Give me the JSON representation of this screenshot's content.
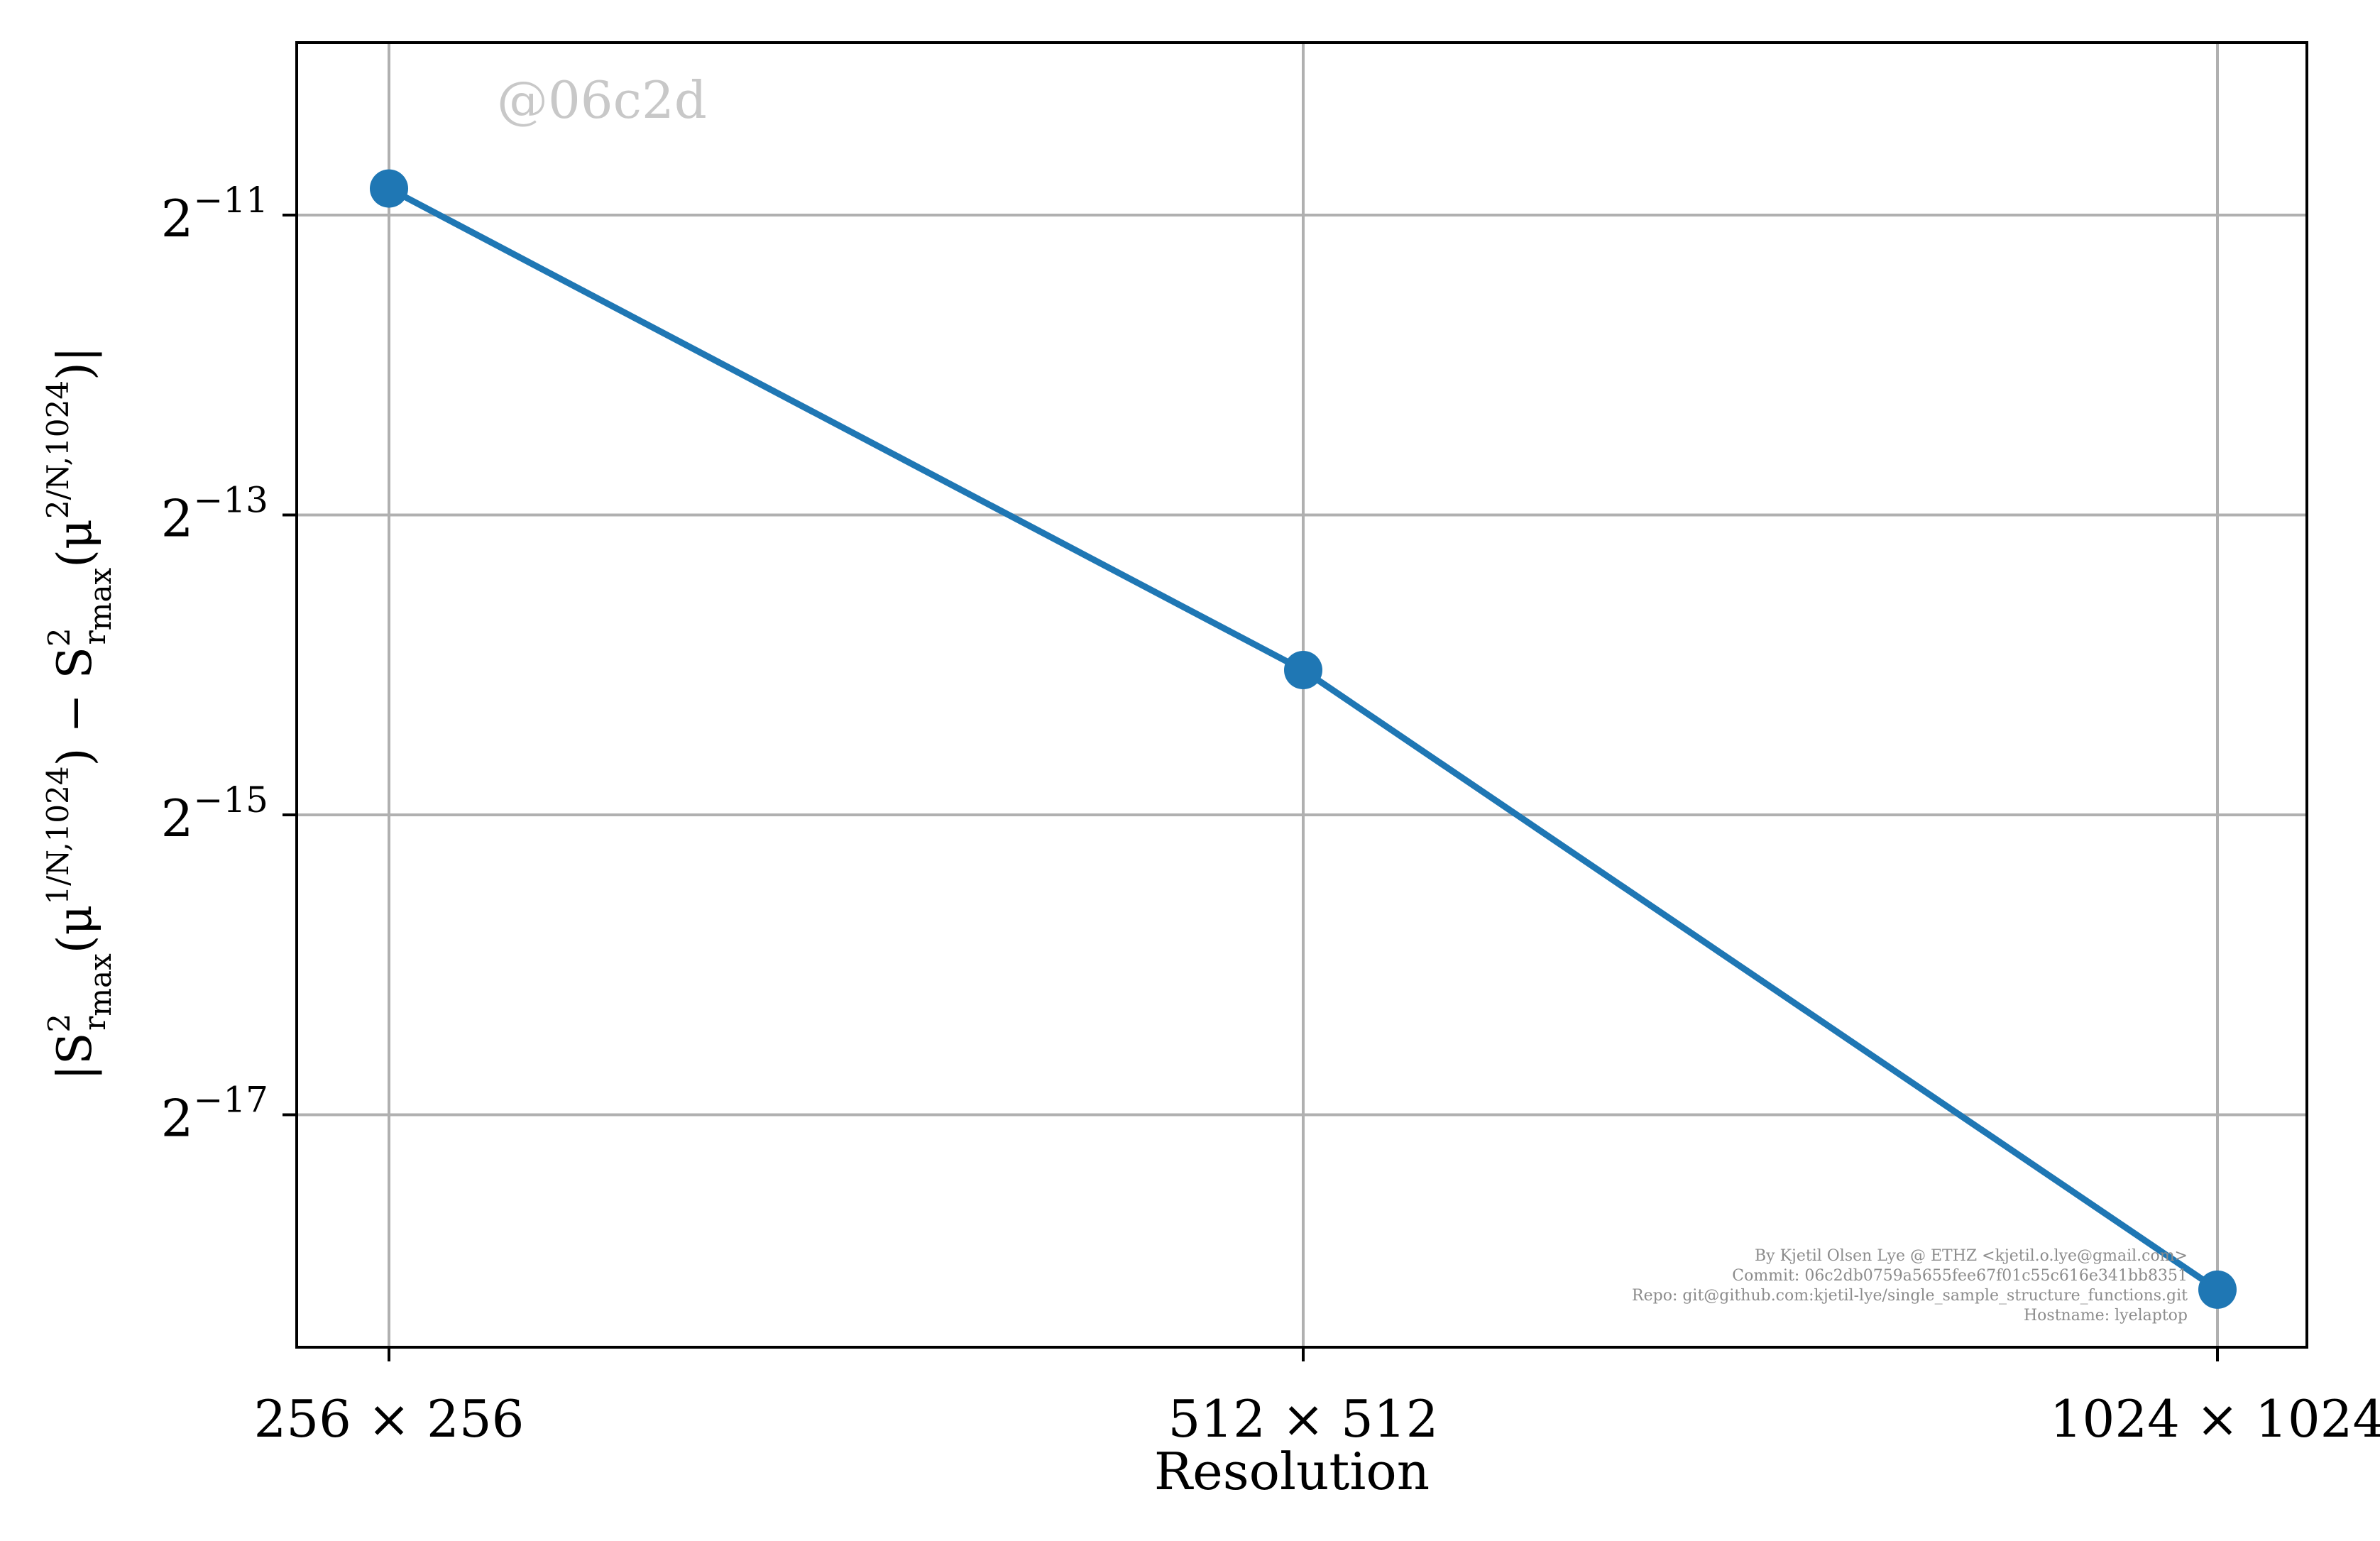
{
  "chart_data": {
    "type": "line",
    "categories": [
      "256 × 256",
      "512 × 512",
      "1024 × 1024"
    ],
    "x": [
      256,
      512,
      1024
    ],
    "series": [
      {
        "values": [
          0.000552,
          5.96e-05,
          3.4e-06
        ],
        "color": "#1f77b4",
        "marker": "circle"
      }
    ],
    "xlabel": "Resolution",
    "ylabel": {
      "prefix": "|S",
      "sup1": "2",
      "sub1": "r",
      "subsub1": "max",
      "arg1_open": "(μ",
      "arg1_sup": "1/N,1024",
      "arg1_close": ")",
      "minus": " − S",
      "sup2": "2",
      "sub2": "r",
      "subsub2": "max",
      "arg2_open": "(μ",
      "arg2_sup": "2/N,1024",
      "arg2_close": ")|"
    },
    "yscale": "log2",
    "yticks": [
      {
        "base": "2",
        "exp": "−11",
        "value": 0.00048828125
      },
      {
        "base": "2",
        "exp": "−13",
        "value": 0.0001220703125
      },
      {
        "base": "2",
        "exp": "−15",
        "value": 3.0517578125e-05
      },
      {
        "base": "2",
        "exp": "−17",
        "value": 7.62939453125e-06
      }
    ],
    "ylim_exp": [
      -18.55,
      -9.85
    ],
    "grid": true,
    "grid_color": "#b0b0b0",
    "watermark": "@06c2d",
    "credits": [
      "By Kjetil Olsen Lye @ ETHZ <kjetil.o.lye@gmail.com>",
      "Commit: 06c2db0759a5655fee67f01c55c616e341bb8351",
      "Repo: git@github.com:kjetil-lye/single_sample_structure_functions.git",
      "Hostname: lyelaptop"
    ]
  }
}
